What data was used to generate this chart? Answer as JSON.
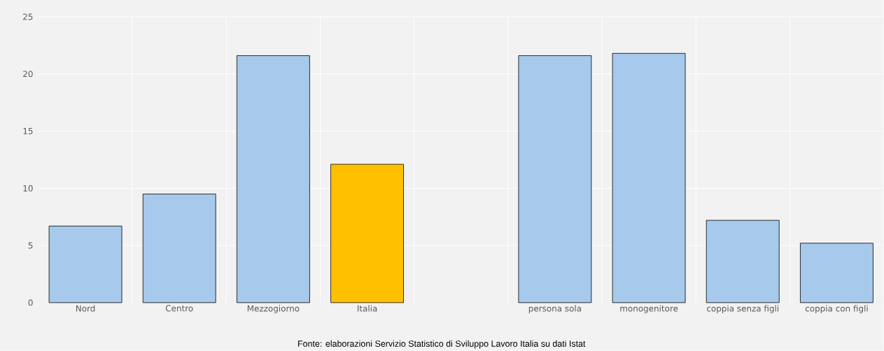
{
  "chart_data": {
    "type": "bar",
    "categories": [
      "Nord",
      "Centro",
      "Mezzogiorno",
      "Italia",
      null,
      "persona sola",
      "monogenitore",
      "coppia senza figli",
      "coppia con figli"
    ],
    "values": [
      6.7,
      9.5,
      21.6,
      12.1,
      null,
      21.6,
      21.8,
      7.2,
      5.2
    ],
    "colors": [
      "#a6c9ec",
      "#a6c9ec",
      "#a6c9ec",
      "#ffc000",
      "#a6c9ec",
      "#a6c9ec",
      "#a6c9ec",
      "#a6c9ec",
      "#a6c9ec"
    ],
    "ylim": [
      0,
      25
    ],
    "yticks": [
      0,
      5,
      10,
      15,
      20,
      25
    ],
    "grid": true,
    "annotations": [
      "Fonte: elaborazioni Servizio Statistico di Sviluppo Lavoro Italia su dati Istat"
    ]
  }
}
